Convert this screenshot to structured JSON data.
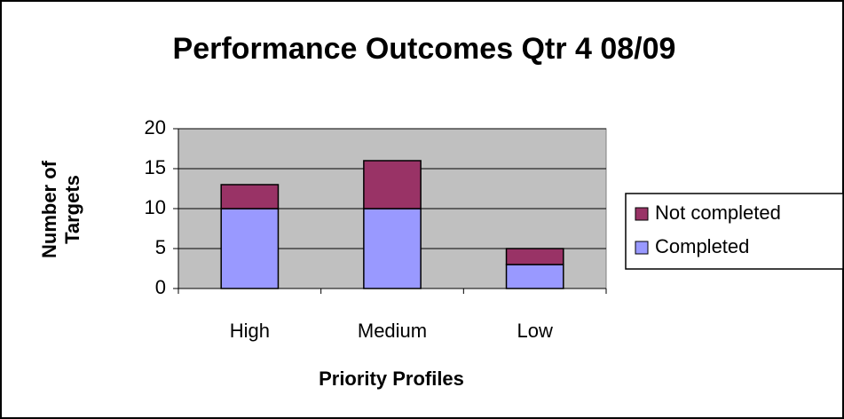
{
  "chart_data": {
    "type": "stacked_bar",
    "title": "Performance Outcomes Qtr 4 08/09",
    "x_label": "Priority Profiles",
    "y_label": [
      "Number of",
      "Targets"
    ],
    "categories": [
      "High",
      "Medium",
      "Low"
    ],
    "series": [
      {
        "name": "Completed",
        "color": "#9999ff",
        "values": [
          10,
          10,
          3
        ]
      },
      {
        "name": "Not completed",
        "color": "#993366",
        "values": [
          3,
          6,
          2
        ]
      }
    ],
    "ylim": [
      0,
      20
    ],
    "yticks": [
      0,
      5,
      10,
      15,
      20
    ],
    "grid": true,
    "plot_background": "#c0c0c0",
    "legend": "right"
  }
}
